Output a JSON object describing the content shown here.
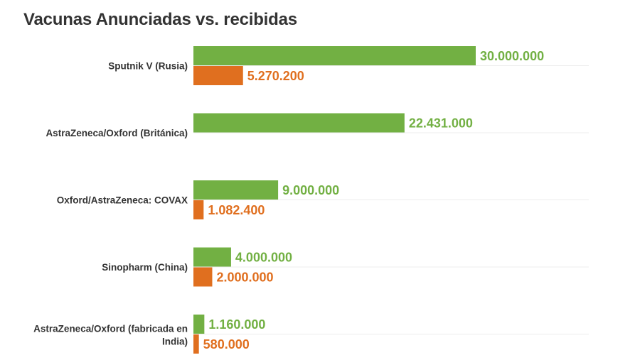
{
  "chart_data": {
    "type": "bar",
    "orientation": "horizontal",
    "title": "Vacunas Anunciadas vs. recibidas",
    "xlabel": "",
    "ylabel": "",
    "xlim": [
      0,
      30000000
    ],
    "grid": true,
    "legend": "none",
    "categories": [
      "Sputnik V (Rusia)",
      "AstraZeneca/Oxford (Británica)",
      "Oxford/AstraZeneca: COVAX",
      "Sinopharm (China)",
      "AstraZeneca/Oxford (fabricada en India)"
    ],
    "series": [
      {
        "color": "#72b043",
        "values": [
          30000000,
          22431000,
          9000000,
          4000000,
          1160000
        ],
        "value_labels": [
          "30.000.000",
          "22.431.000",
          "9.000.000",
          "4.000.000",
          "1.160.000"
        ]
      },
      {
        "color": "#e06f1f",
        "values": [
          5270200,
          null,
          1082400,
          2000000,
          580000
        ],
        "value_labels": [
          "5.270.200",
          "",
          "1.082.400",
          "2.000.000",
          "580.000"
        ]
      }
    ]
  }
}
